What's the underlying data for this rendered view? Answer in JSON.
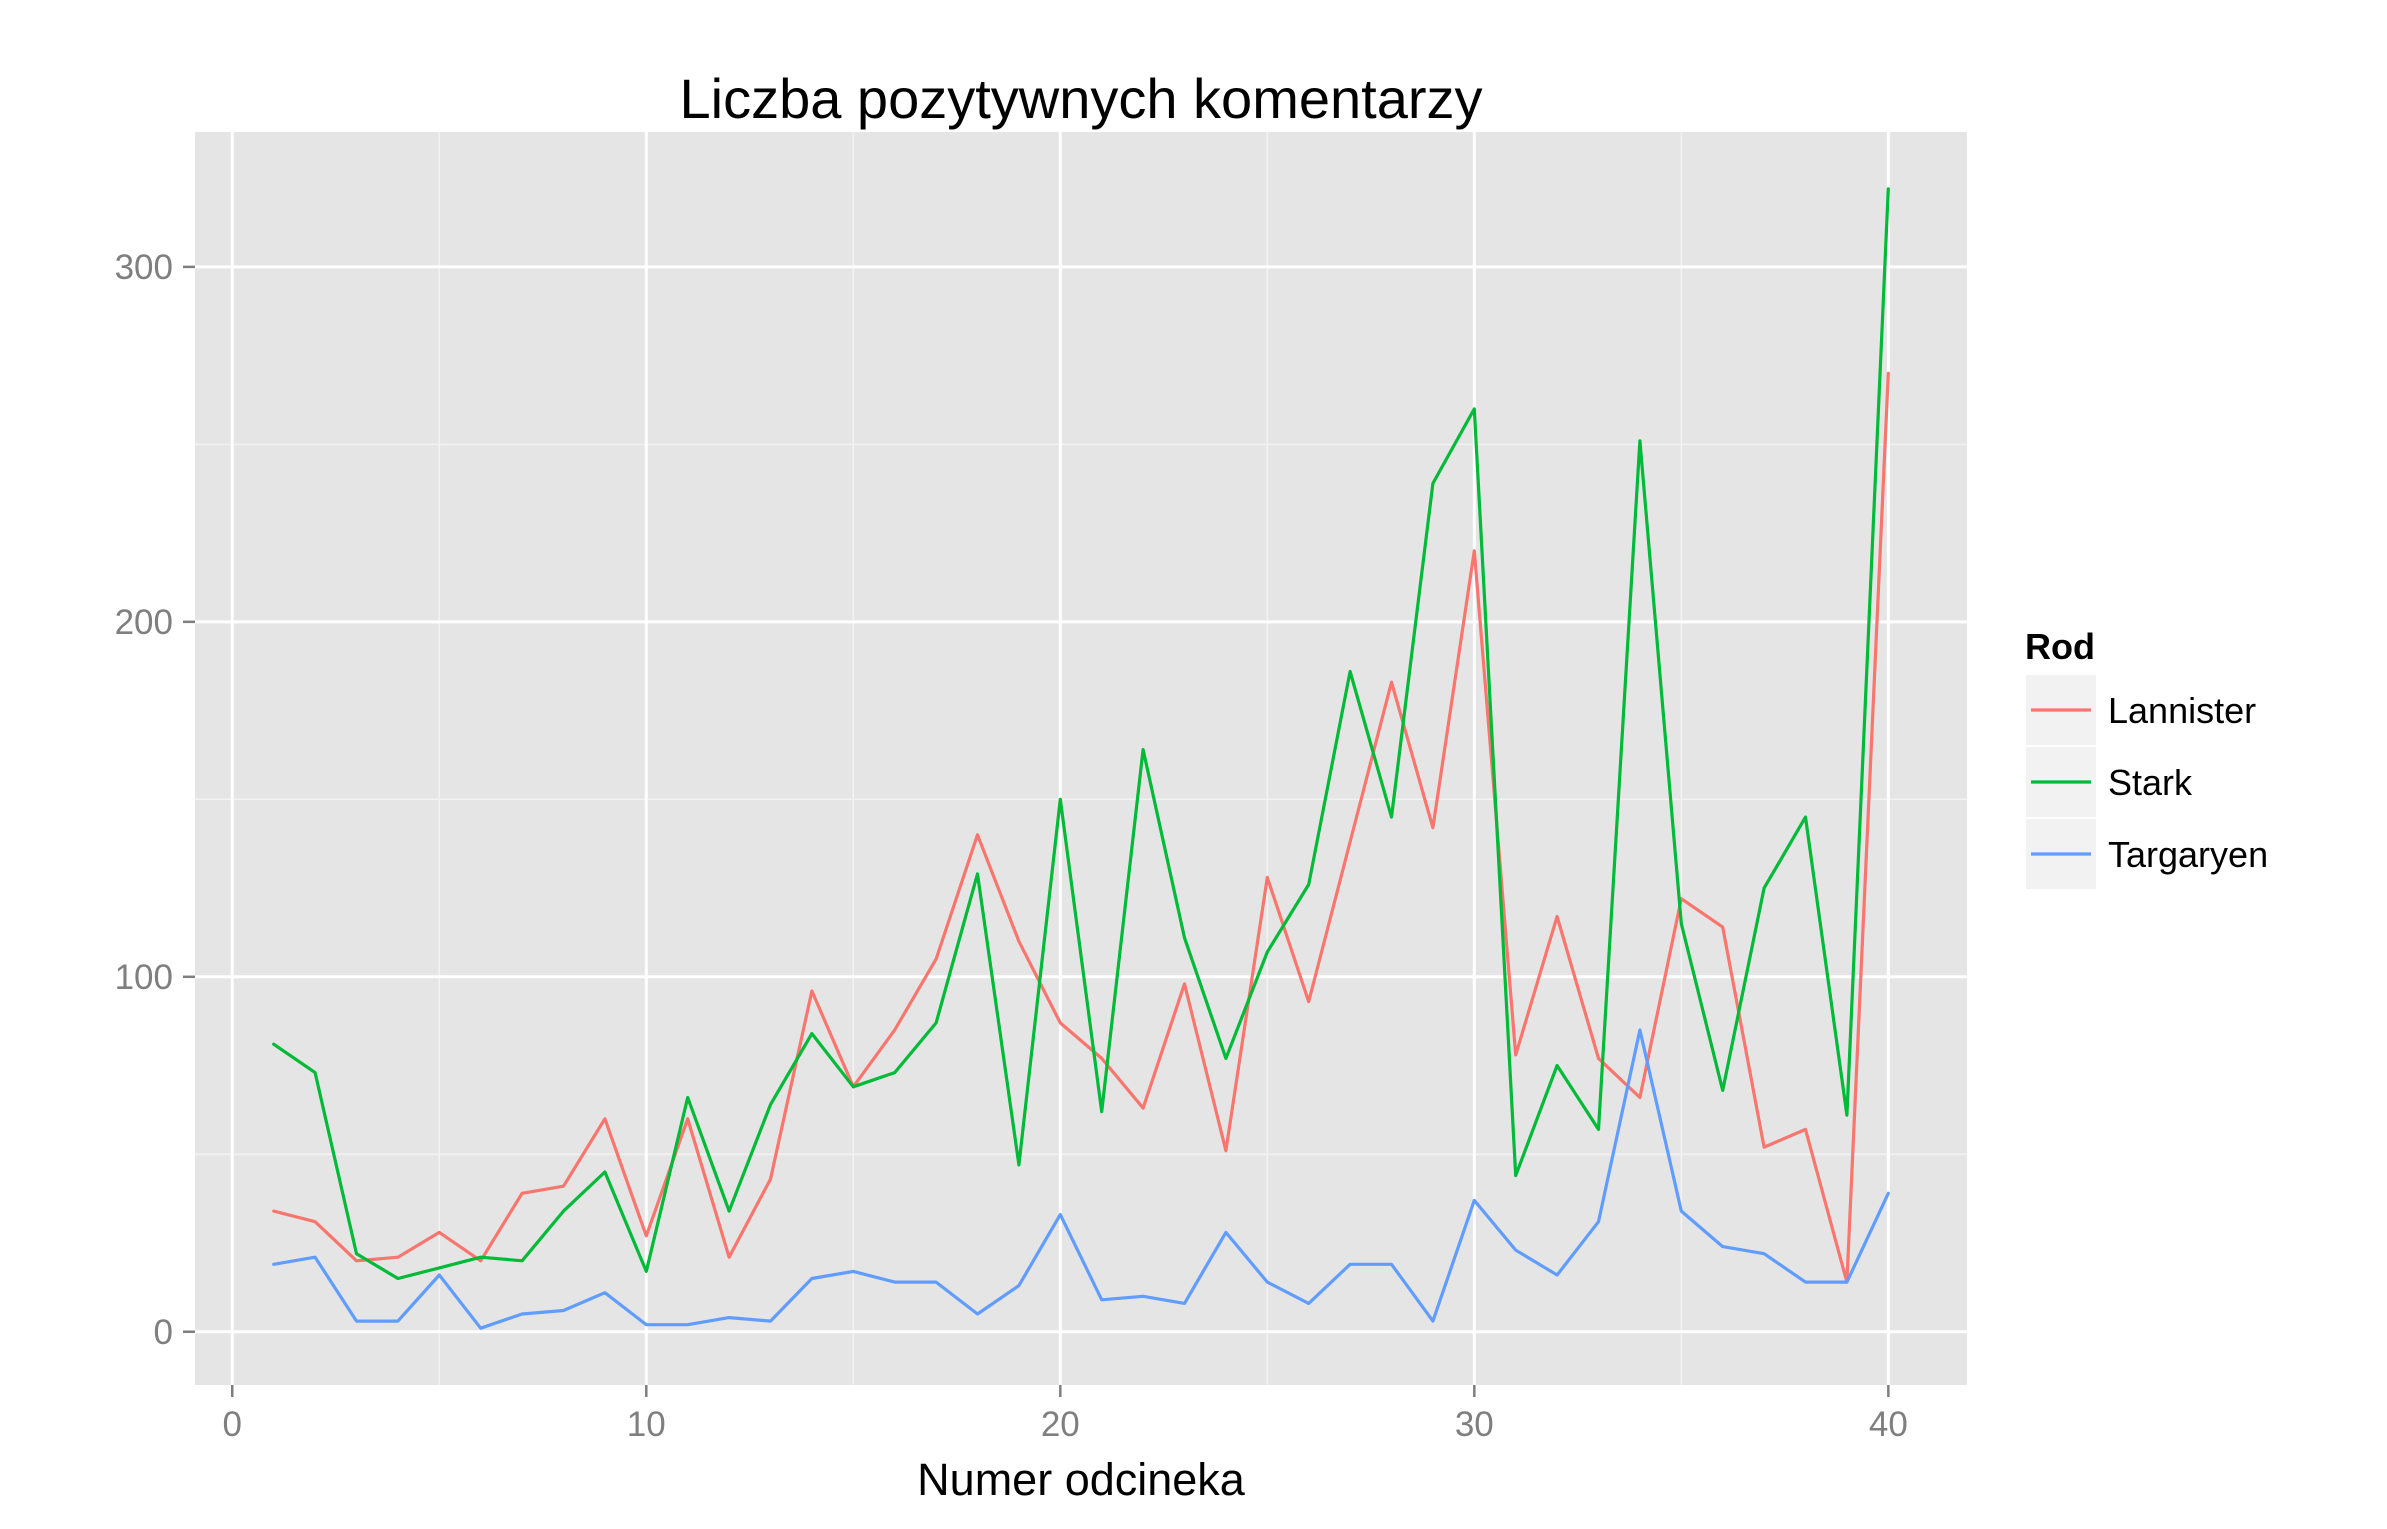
{
  "chart_data": {
    "type": "line",
    "title": "Liczba pozytywnych komentarzy",
    "xlabel": "Numer odcineka",
    "ylabel": "",
    "xlim": [
      -0.9,
      41.9
    ],
    "ylim": [
      -15,
      338
    ],
    "x_ticks": [
      0,
      10,
      20,
      30,
      40
    ],
    "x_tick_labels": [
      "0",
      "10",
      "20",
      "30",
      "40"
    ],
    "y_ticks": [
      0,
      100,
      200,
      300
    ],
    "y_tick_labels": [
      "0",
      "100",
      "200",
      "300"
    ],
    "grid": true,
    "legend": {
      "title": "Rod",
      "position": "right"
    },
    "x": [
      1,
      2,
      3,
      4,
      5,
      6,
      7,
      8,
      9,
      10,
      11,
      12,
      13,
      14,
      15,
      16,
      17,
      18,
      19,
      20,
      21,
      22,
      23,
      24,
      25,
      26,
      27,
      28,
      29,
      30,
      31,
      32,
      33,
      34,
      35,
      36,
      37,
      38,
      39,
      40
    ],
    "series": [
      {
        "name": "Lannister",
        "color": "#F8766D",
        "values": [
          34,
          31,
          20,
          21,
          28,
          20,
          39,
          41,
          60,
          27,
          60,
          21,
          43,
          96,
          69,
          85,
          105,
          140,
          110,
          87,
          77,
          63,
          98,
          51,
          128,
          93,
          138,
          183,
          142,
          220,
          78,
          117,
          77,
          66,
          122,
          114,
          52,
          57,
          14,
          270
        ]
      },
      {
        "name": "Stark",
        "color": "#00BA38",
        "values": [
          81,
          73,
          22,
          15,
          18,
          21,
          20,
          34,
          45,
          17,
          66,
          34,
          64,
          84,
          69,
          73,
          87,
          129,
          47,
          150,
          62,
          164,
          111,
          77,
          107,
          126,
          186,
          145,
          239,
          260,
          44,
          75,
          57,
          251,
          115,
          68,
          125,
          145,
          61,
          322
        ]
      },
      {
        "name": "Targaryen",
        "color": "#619CFF",
        "values": [
          19,
          21,
          3,
          3,
          16,
          1,
          5,
          6,
          11,
          2,
          2,
          4,
          3,
          15,
          17,
          14,
          14,
          5,
          13,
          33,
          9,
          10,
          8,
          28,
          14,
          8,
          19,
          19,
          3,
          37,
          23,
          16,
          31,
          85,
          34,
          24,
          22,
          14,
          14,
          39
        ]
      }
    ]
  }
}
